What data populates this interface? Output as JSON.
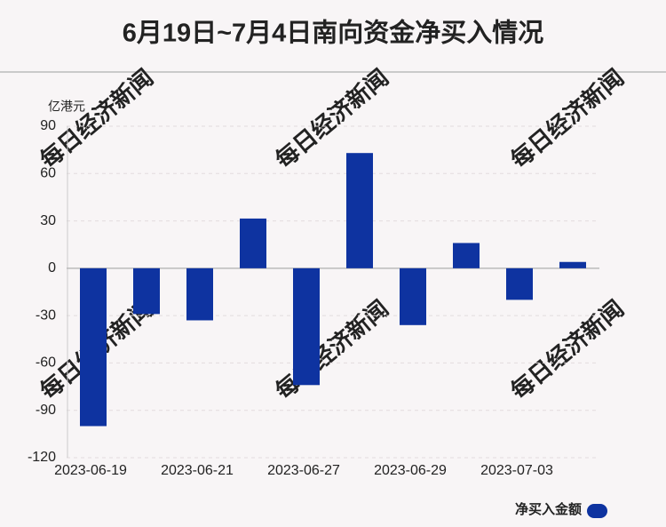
{
  "chart_data": {
    "type": "bar",
    "title": "6月19日~7月4日南向资金净买入情况",
    "y_axis_label": "亿港元",
    "categories": [
      "2023-06-19",
      null,
      "2023-06-21",
      null,
      "2023-06-27",
      null,
      "2023-06-29",
      null,
      "2023-07-03",
      null
    ],
    "series": [
      {
        "name": "净买入金额",
        "color": "#0e33a0",
        "values": [
          -100,
          -29,
          -33,
          31.5,
          -74,
          73,
          -36,
          16,
          -20,
          4
        ]
      }
    ],
    "ylim": [
      -120,
      90
    ],
    "yticks": [
      -120,
      -90,
      -60,
      -30,
      0,
      30,
      60,
      90
    ],
    "grid": true,
    "legend": "bottom-right",
    "watermark": "每日经济新闻"
  }
}
